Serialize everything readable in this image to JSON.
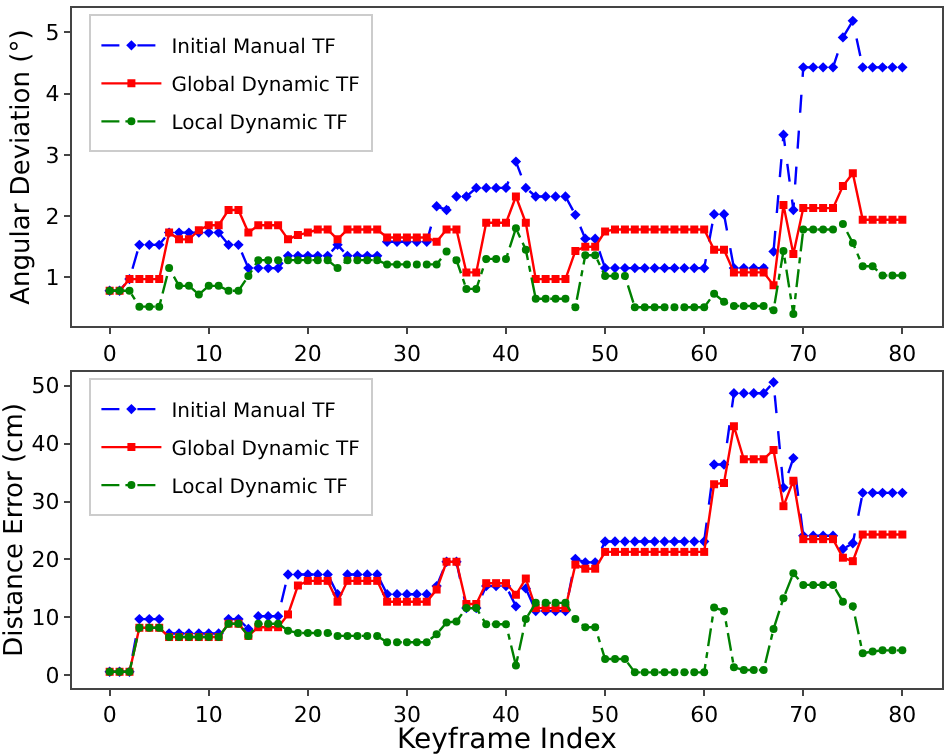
{
  "chart_data": [
    {
      "type": "line",
      "ylabel": "Angular Deviation (°)",
      "legend": "top left",
      "x": [
        0,
        1,
        2,
        3,
        4,
        5,
        6,
        7,
        8,
        9,
        10,
        11,
        12,
        13,
        14,
        15,
        16,
        17,
        18,
        19,
        20,
        21,
        22,
        23,
        24,
        25,
        26,
        27,
        28,
        29,
        30,
        31,
        32,
        33,
        34,
        35,
        36,
        37,
        38,
        39,
        40,
        41,
        42,
        43,
        44,
        45,
        46,
        47,
        48,
        49,
        50,
        51,
        52,
        53,
        54,
        55,
        56,
        57,
        58,
        59,
        60,
        61,
        62,
        63,
        64,
        65,
        66,
        67,
        68,
        69,
        70,
        71,
        72,
        73,
        74,
        75,
        76,
        77,
        78,
        79,
        80
      ],
      "xlim": [
        -3.8,
        84
      ],
      "xticks": [
        0,
        10,
        20,
        30,
        40,
        50,
        60,
        70,
        80
      ],
      "ylim": [
        0.2,
        5.4
      ],
      "yticks": [
        1,
        2,
        3,
        4,
        5
      ],
      "series": [
        {
          "name": "Initial Manual TF",
          "color": "#0000ff",
          "marker": "diamond",
          "line_style": "dashed",
          "values": [
            0.78,
            0.78,
            0.97,
            1.53,
            1.53,
            1.53,
            1.73,
            1.73,
            1.73,
            1.73,
            1.73,
            1.73,
            1.53,
            1.53,
            1.15,
            1.15,
            1.15,
            1.15,
            1.35,
            1.35,
            1.35,
            1.35,
            1.35,
            1.53,
            1.35,
            1.35,
            1.35,
            1.35,
            1.58,
            1.58,
            1.58,
            1.58,
            1.58,
            2.16,
            2.1,
            2.32,
            2.32,
            2.46,
            2.46,
            2.46,
            2.46,
            2.89,
            2.46,
            2.32,
            2.32,
            2.32,
            2.32,
            2.02,
            1.63,
            1.63,
            1.15,
            1.15,
            1.15,
            1.15,
            1.15,
            1.15,
            1.15,
            1.15,
            1.15,
            1.15,
            1.15,
            2.03,
            2.03,
            1.15,
            1.15,
            1.15,
            1.15,
            1.42,
            3.33,
            2.1,
            4.43,
            4.43,
            4.43,
            4.43,
            4.92,
            5.19,
            4.43,
            4.43,
            4.43,
            4.43,
            4.43
          ]
        },
        {
          "name": "Global Dynamic TF",
          "color": "#ff0000",
          "marker": "square",
          "line_style": "solid",
          "values": [
            0.78,
            0.78,
            0.97,
            0.97,
            0.97,
            0.97,
            1.73,
            1.62,
            1.62,
            1.77,
            1.85,
            1.85,
            2.1,
            2.1,
            1.73,
            1.85,
            1.85,
            1.85,
            1.62,
            1.69,
            1.73,
            1.78,
            1.78,
            1.62,
            1.78,
            1.78,
            1.78,
            1.78,
            1.65,
            1.65,
            1.65,
            1.65,
            1.65,
            1.58,
            1.78,
            1.78,
            1.08,
            1.08,
            1.89,
            1.89,
            1.89,
            2.32,
            1.89,
            0.97,
            0.97,
            0.97,
            0.97,
            1.43,
            1.5,
            1.5,
            1.75,
            1.78,
            1.78,
            1.78,
            1.78,
            1.78,
            1.78,
            1.78,
            1.78,
            1.78,
            1.78,
            1.45,
            1.45,
            1.08,
            1.08,
            1.08,
            1.08,
            0.87,
            2.18,
            1.38,
            2.13,
            2.13,
            2.13,
            2.13,
            2.49,
            2.7,
            1.94,
            1.94,
            1.94,
            1.94,
            1.94
          ]
        },
        {
          "name": "Local Dynamic TF",
          "color": "#008000",
          "marker": "circle",
          "line_style": "dashdot",
          "values": [
            0.78,
            0.78,
            0.78,
            0.52,
            0.52,
            0.52,
            1.15,
            0.86,
            0.86,
            0.72,
            0.86,
            0.86,
            0.78,
            0.78,
            1.02,
            1.28,
            1.28,
            1.28,
            1.28,
            1.28,
            1.28,
            1.28,
            1.28,
            1.15,
            1.28,
            1.28,
            1.28,
            1.28,
            1.21,
            1.21,
            1.21,
            1.21,
            1.21,
            1.21,
            1.42,
            1.28,
            0.81,
            0.81,
            1.3,
            1.3,
            1.3,
            1.8,
            1.45,
            0.65,
            0.65,
            0.65,
            0.65,
            0.51,
            1.36,
            1.36,
            1.02,
            1.02,
            1.02,
            0.51,
            0.51,
            0.51,
            0.51,
            0.51,
            0.51,
            0.51,
            0.51,
            0.73,
            0.6,
            0.53,
            0.53,
            0.53,
            0.53,
            0.46,
            1.43,
            0.4,
            1.78,
            1.78,
            1.78,
            1.78,
            1.87,
            1.56,
            1.18,
            1.18,
            1.03,
            1.03,
            1.03
          ]
        }
      ]
    },
    {
      "type": "line",
      "xlabel": "Keyframe Index",
      "ylabel": "Distance Error (cm)",
      "legend": "top left",
      "x": [
        0,
        1,
        2,
        3,
        4,
        5,
        6,
        7,
        8,
        9,
        10,
        11,
        12,
        13,
        14,
        15,
        16,
        17,
        18,
        19,
        20,
        21,
        22,
        23,
        24,
        25,
        26,
        27,
        28,
        29,
        30,
        31,
        32,
        33,
        34,
        35,
        36,
        37,
        38,
        39,
        40,
        41,
        42,
        43,
        44,
        45,
        46,
        47,
        48,
        49,
        50,
        51,
        52,
        53,
        54,
        55,
        56,
        57,
        58,
        59,
        60,
        61,
        62,
        63,
        64,
        65,
        66,
        67,
        68,
        69,
        70,
        71,
        72,
        73,
        74,
        75,
        76,
        77,
        78,
        79,
        80
      ],
      "xlim": [
        -3.8,
        84
      ],
      "xticks": [
        0,
        10,
        20,
        30,
        40,
        50,
        60,
        70,
        80
      ],
      "ylim": [
        -2.2,
        52.4
      ],
      "yticks": [
        0,
        10,
        20,
        30,
        40,
        50
      ],
      "series": [
        {
          "name": "Initial Manual TF",
          "color": "#0000ff",
          "marker": "diamond",
          "line_style": "dashed",
          "values": [
            0.6,
            0.6,
            0.6,
            9.7,
            9.7,
            9.7,
            7.2,
            7.2,
            7.2,
            7.2,
            7.2,
            7.2,
            9.7,
            9.7,
            8,
            10.2,
            10.2,
            10.2,
            17.4,
            17.4,
            17.4,
            17.4,
            17.4,
            14,
            17.4,
            17.4,
            17.4,
            17.4,
            14,
            14,
            14,
            14,
            14,
            15.4,
            19.6,
            19.6,
            11.6,
            11.6,
            15.4,
            15.4,
            15.4,
            11.9,
            15,
            11.1,
            11.1,
            11.1,
            11.1,
            20.1,
            19.5,
            19.5,
            23.1,
            23.1,
            23.1,
            23.1,
            23.1,
            23.1,
            23.1,
            23.1,
            23.1,
            23.1,
            23.1,
            36.4,
            36.4,
            48.7,
            48.7,
            48.7,
            48.7,
            50.6,
            32.4,
            37.5,
            24.1,
            24.1,
            24.1,
            24.1,
            21.8,
            22.8,
            31.5,
            31.5,
            31.5,
            31.5,
            31.5
          ]
        },
        {
          "name": "Global Dynamic TF",
          "color": "#ff0000",
          "marker": "square",
          "line_style": "solid",
          "values": [
            0.6,
            0.6,
            0.6,
            8.2,
            8.2,
            8.2,
            6.6,
            6.6,
            6.6,
            6.6,
            6.6,
            6.6,
            8.9,
            8.9,
            6.8,
            8.3,
            8.3,
            8.3,
            10.5,
            15.5,
            16.3,
            16.3,
            16.3,
            12.7,
            16.3,
            16.3,
            16.3,
            16.3,
            12.7,
            12.7,
            12.7,
            12.7,
            12.7,
            14.8,
            19.6,
            19.6,
            12.3,
            12.3,
            15.9,
            15.9,
            15.9,
            13.9,
            16.7,
            11.6,
            11.6,
            11.6,
            11.6,
            19.1,
            18.4,
            18.4,
            21.3,
            21.3,
            21.3,
            21.3,
            21.3,
            21.3,
            21.3,
            21.3,
            21.3,
            21.3,
            21.3,
            33,
            33.2,
            43,
            37.3,
            37.3,
            37.3,
            38.9,
            29.2,
            33.6,
            23.5,
            23.5,
            23.5,
            23.5,
            20.3,
            19.7,
            24.3,
            24.3,
            24.3,
            24.3,
            24.3
          ]
        },
        {
          "name": "Local Dynamic TF",
          "color": "#008000",
          "marker": "circle",
          "line_style": "dashdot",
          "values": [
            0.6,
            0.6,
            0.6,
            8.2,
            8.2,
            8.2,
            6.6,
            6.6,
            6.6,
            6.6,
            6.6,
            6.6,
            8.9,
            8.9,
            6.8,
            8.9,
            8.9,
            8.9,
            7.7,
            7.3,
            7.3,
            7.3,
            7.3,
            6.8,
            6.8,
            6.8,
            6.8,
            6.8,
            5.7,
            5.7,
            5.7,
            5.7,
            5.7,
            7.1,
            9.1,
            9.3,
            11.6,
            11.6,
            8.8,
            8.8,
            8.8,
            1.7,
            9.7,
            12.5,
            12.5,
            12.5,
            12.5,
            9.7,
            8.3,
            8.3,
            2.8,
            2.8,
            2.8,
            0.5,
            0.5,
            0.5,
            0.5,
            0.5,
            0.5,
            0.5,
            0.5,
            11.7,
            11.1,
            1.4,
            0.9,
            0.9,
            0.9,
            8,
            13.3,
            17.6,
            15.6,
            15.6,
            15.6,
            15.6,
            12.7,
            11.9,
            3.8,
            4.1,
            4.3,
            4.3,
            4.3
          ]
        }
      ]
    }
  ]
}
